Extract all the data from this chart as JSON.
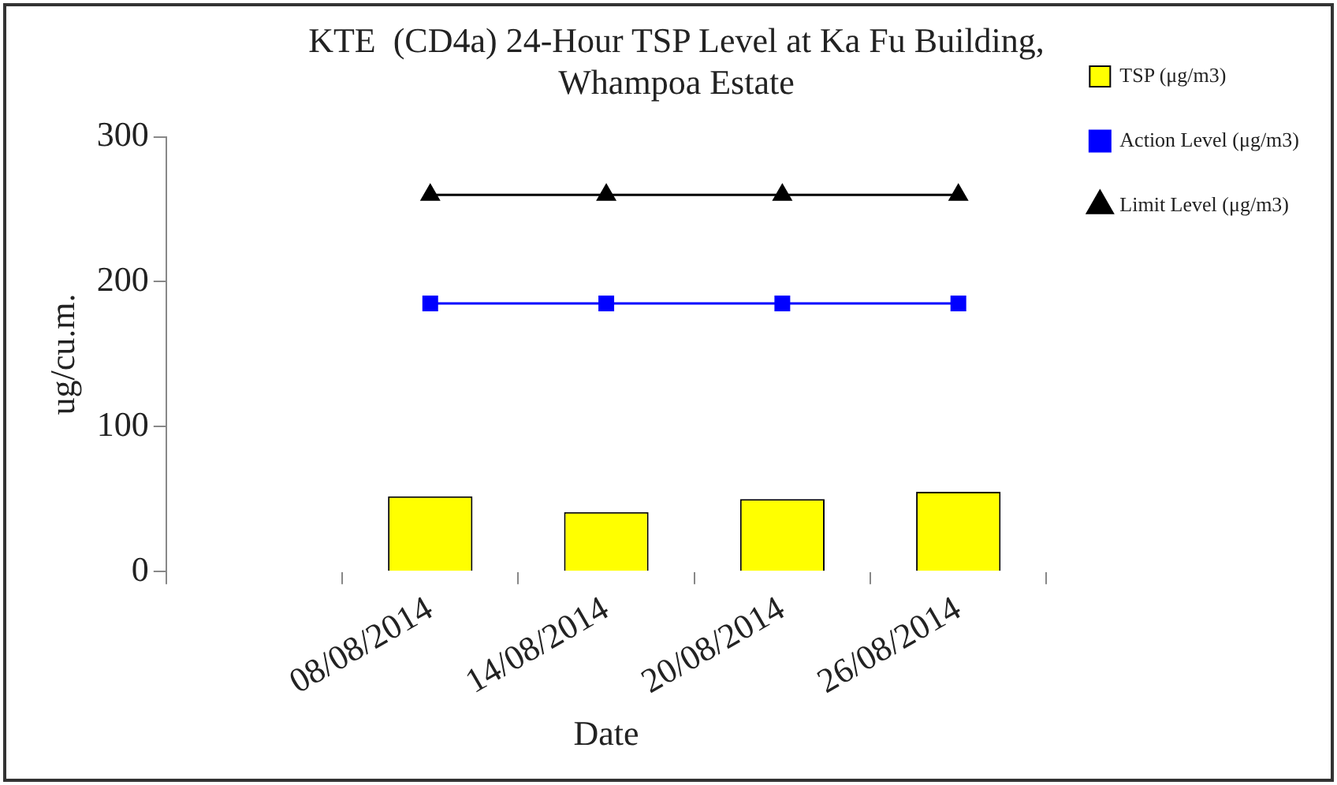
{
  "chart_data": {
    "type": "bar",
    "title": [
      "KTE  (CD4a) 24-Hour TSP Level at Ka Fu Building,",
      "Whampoa Estate"
    ],
    "xlabel": "Date",
    "ylabel": "ug/cu.m.",
    "categories": [
      null,
      "08/08/2014",
      "14/08/2014",
      "20/08/2014",
      "26/08/2014"
    ],
    "series": [
      {
        "name": "TSP (μg/m3)",
        "color": "#ffff00",
        "values": [
          null,
          52,
          41,
          50,
          55
        ]
      },
      {
        "name": "Action Level (μg/m3)",
        "type": "line",
        "color": "#0000ff",
        "marker": "square",
        "values": [
          null,
          185,
          185,
          185,
          185
        ]
      },
      {
        "name": "Limit Level (μg/m3)",
        "type": "line",
        "color": "#000000",
        "marker": "triangle",
        "values": [
          null,
          260,
          260,
          260,
          260
        ]
      }
    ],
    "ylim": [
      0,
      300
    ],
    "yticks": [
      0,
      100,
      200,
      300
    ],
    "grid": false,
    "legend": "right"
  }
}
